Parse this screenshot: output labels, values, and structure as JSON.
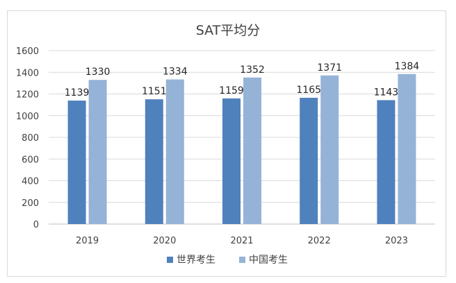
{
  "chart_data": {
    "type": "bar",
    "title": "SAT平均分",
    "categories": [
      "2019",
      "2020",
      "2021",
      "2022",
      "2023"
    ],
    "series": [
      {
        "name": "世界考生",
        "values": [
          1139,
          1151,
          1159,
          1165,
          1143
        ],
        "color": "#4f81bd"
      },
      {
        "name": "中国考生",
        "values": [
          1330,
          1334,
          1352,
          1371,
          1384
        ],
        "color": "#95b3d7"
      }
    ],
    "ylim": [
      0,
      1600
    ],
    "yticks": [
      0,
      200,
      400,
      600,
      800,
      1000,
      1200,
      1400,
      1600
    ],
    "grid": true,
    "legend": "bottom",
    "xlabel": "",
    "ylabel": ""
  }
}
